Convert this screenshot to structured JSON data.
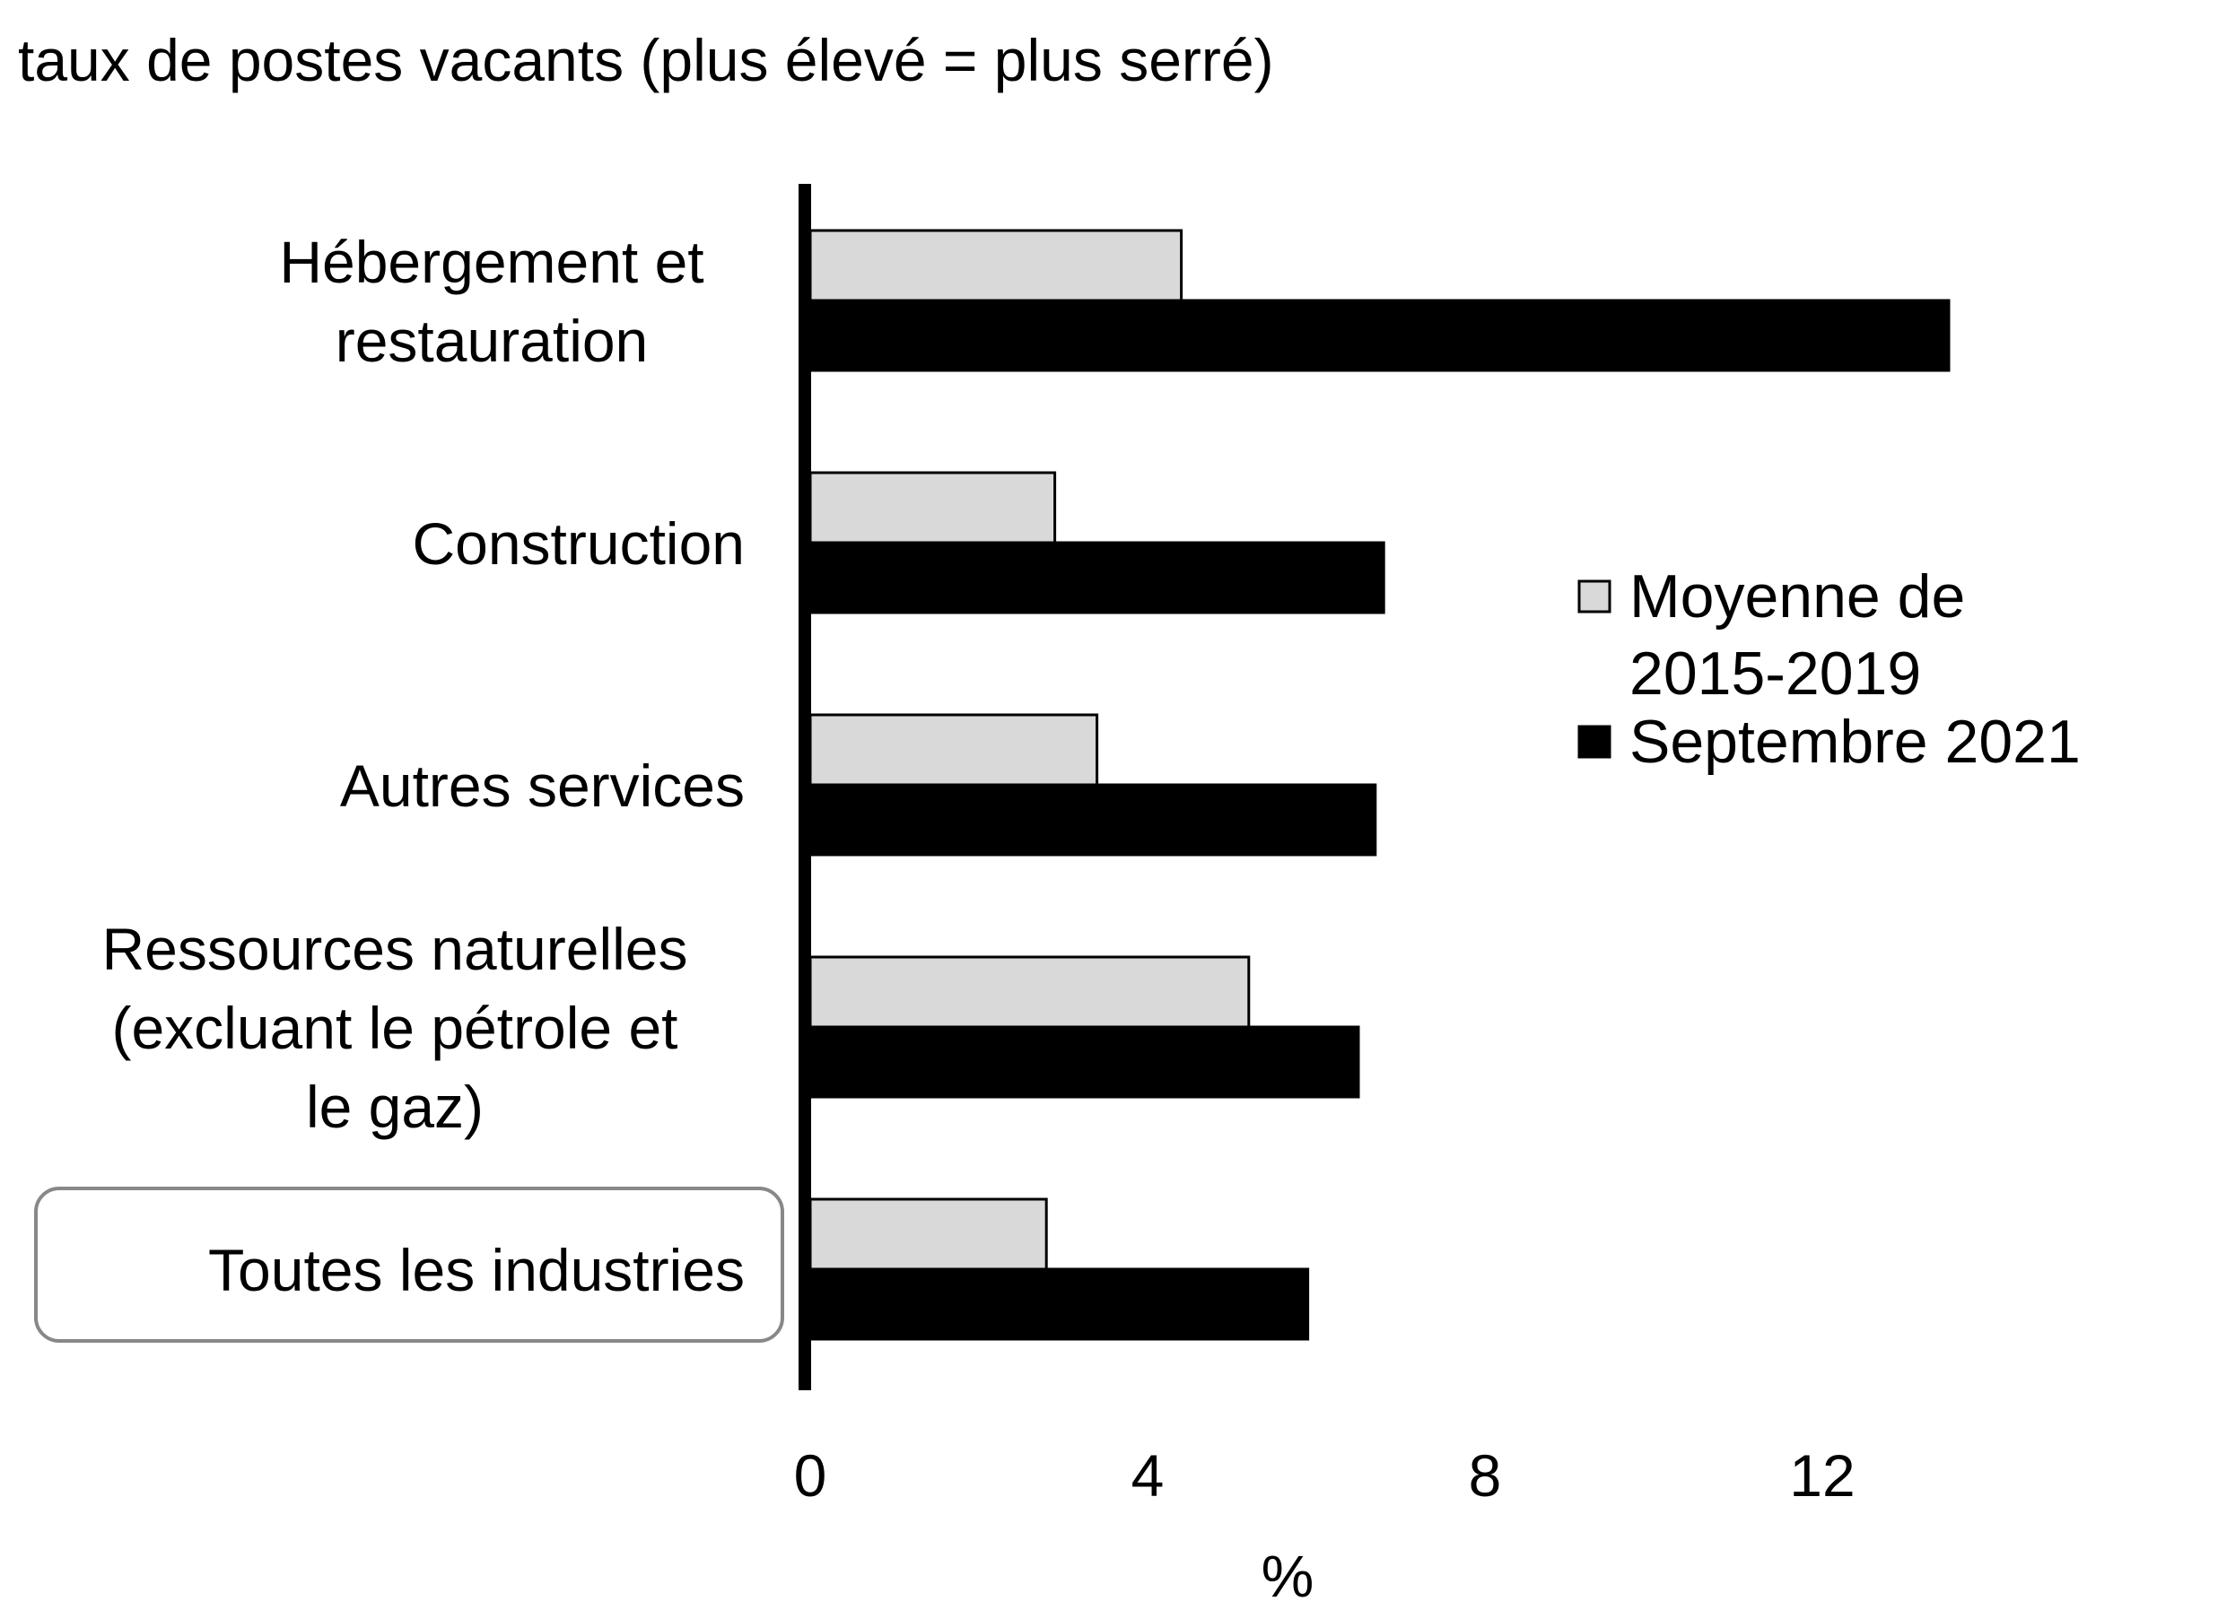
{
  "chart_data": {
    "type": "bar",
    "orientation": "horizontal",
    "title": "taux de postes vacants (plus élevé = plus serré)",
    "xlabel": "%",
    "ylabel": "",
    "xlim": [
      0,
      16
    ],
    "xticks": [
      "0",
      "4",
      "8",
      "12"
    ],
    "grid": false,
    "legend_position": "right",
    "highlighted_category": "Toutes les industries",
    "categories": [
      [
        "Hébergement et",
        "restauration"
      ],
      [
        "Construction"
      ],
      [
        "Autres services"
      ],
      [
        "Ressources naturelles",
        "(excluant le pétrole et",
        "le gaz)"
      ],
      [
        "Toutes les industries"
      ]
    ],
    "series": [
      {
        "name": "Moyenne de 2015-2019",
        "legend_lines": [
          "Moyenne de",
          "2015-2019"
        ],
        "color": "#d9d9d9",
        "values": [
          4.4,
          2.9,
          3.4,
          5.2,
          2.8
        ]
      },
      {
        "name": "Septembre 2021",
        "legend_lines": [
          "Septembre 2021"
        ],
        "color": "#000000",
        "values": [
          13.5,
          6.8,
          6.7,
          6.5,
          5.9
        ]
      }
    ]
  }
}
